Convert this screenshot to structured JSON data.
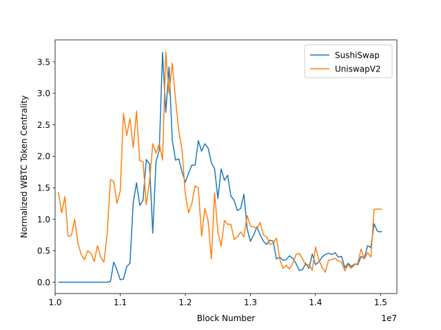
{
  "chart_data": {
    "type": "line",
    "xlabel": "Block Number",
    "ylabel": "Normalized WBTC Token Centrality",
    "x_scale_label": "1e7",
    "xlim": [
      10.0,
      15.25
    ],
    "ylim": [
      -0.18,
      3.85
    ],
    "x_ticks": [
      10.0,
      11.0,
      12.0,
      13.0,
      14.0,
      15.0
    ],
    "x_tick_labels": [
      "1.0",
      "1.1",
      "1.2",
      "1.3",
      "1.4",
      "1.5"
    ],
    "y_ticks": [
      0.0,
      0.5,
      1.0,
      1.5,
      2.0,
      2.5,
      3.0,
      3.5
    ],
    "y_tick_labels": [
      "0.0",
      "0.5",
      "1.0",
      "1.5",
      "2.0",
      "2.5",
      "3.0",
      "3.5"
    ],
    "grid": false,
    "legend_position": "top-right",
    "series": [
      {
        "name": "SushiSwap",
        "color": "#1f77b4",
        "x": [
          10.05,
          10.1,
          10.15,
          10.2,
          10.25,
          10.3,
          10.35,
          10.4,
          10.45,
          10.5,
          10.55,
          10.6,
          10.65,
          10.7,
          10.75,
          10.8,
          10.85,
          10.9,
          10.95,
          11.0,
          11.05,
          11.1,
          11.15,
          11.2,
          11.25,
          11.3,
          11.35,
          11.4,
          11.45,
          11.5,
          11.55,
          11.6,
          11.65,
          11.7,
          11.75,
          11.8,
          11.85,
          11.9,
          11.95,
          12.0,
          12.05,
          12.1,
          12.15,
          12.2,
          12.25,
          12.3,
          12.35,
          12.4,
          12.45,
          12.5,
          12.55,
          12.6,
          12.65,
          12.7,
          12.75,
          12.8,
          12.85,
          12.9,
          12.95,
          13.0,
          13.05,
          13.1,
          13.15,
          13.2,
          13.25,
          13.3,
          13.35,
          13.4,
          13.45,
          13.5,
          13.55,
          13.6,
          13.65,
          13.7,
          13.75,
          13.8,
          13.85,
          13.9,
          13.95,
          14.0,
          14.05,
          14.1,
          14.15,
          14.2,
          14.25,
          14.3,
          14.35,
          14.4,
          14.45,
          14.5,
          14.55,
          14.6,
          14.65,
          14.7,
          14.75,
          14.8,
          14.85,
          14.9,
          14.95,
          15.0,
          15.02
        ],
        "y": [
          0,
          0,
          0,
          0,
          0,
          0,
          0,
          0,
          0,
          0,
          0,
          0,
          0,
          0,
          0,
          0,
          0.01,
          0.32,
          0.2,
          0.04,
          0.05,
          0.25,
          0.3,
          1.27,
          1.58,
          1.22,
          1.3,
          1.95,
          1.88,
          0.78,
          1.92,
          2.1,
          3.65,
          2.7,
          3.42,
          2.25,
          1.94,
          1.96,
          1.75,
          1.59,
          1.73,
          1.86,
          1.86,
          2.25,
          2.08,
          2.2,
          2.13,
          1.9,
          1.8,
          1.33,
          1.8,
          1.62,
          1.7,
          1.37,
          1.3,
          1.14,
          1.17,
          1.4,
          0.85,
          0.65,
          0.75,
          0.88,
          0.75,
          0.65,
          0.6,
          0.67,
          0.65,
          0.37,
          0.4,
          0.35,
          0.36,
          0.42,
          0.38,
          0.3,
          0.19,
          0.2,
          0.3,
          0.22,
          0.45,
          0.28,
          0.32,
          0.4,
          0.44,
          0.46,
          0.44,
          0.47,
          0.4,
          0.41,
          0.23,
          0.3,
          0.25,
          0.29,
          0.28,
          0.41,
          0.38,
          0.58,
          0.55,
          0.93,
          0.81,
          0.8,
          0.81
        ]
      },
      {
        "name": "UniswapV2",
        "color": "#ff7f0e",
        "x": [
          10.05,
          10.1,
          10.15,
          10.2,
          10.25,
          10.3,
          10.35,
          10.4,
          10.45,
          10.5,
          10.55,
          10.6,
          10.65,
          10.7,
          10.75,
          10.8,
          10.85,
          10.9,
          10.95,
          11.0,
          11.05,
          11.1,
          11.15,
          11.2,
          11.25,
          11.3,
          11.35,
          11.4,
          11.45,
          11.5,
          11.55,
          11.6,
          11.65,
          11.7,
          11.75,
          11.8,
          11.85,
          11.9,
          11.95,
          12.0,
          12.05,
          12.1,
          12.15,
          12.2,
          12.25,
          12.3,
          12.35,
          12.4,
          12.45,
          12.5,
          12.55,
          12.6,
          12.65,
          12.7,
          12.75,
          12.8,
          12.85,
          12.9,
          12.95,
          13.0,
          13.05,
          13.1,
          13.15,
          13.2,
          13.25,
          13.3,
          13.35,
          13.4,
          13.45,
          13.5,
          13.55,
          13.6,
          13.65,
          13.7,
          13.75,
          13.8,
          13.85,
          13.9,
          13.95,
          14.0,
          14.05,
          14.1,
          14.15,
          14.2,
          14.25,
          14.3,
          14.35,
          14.4,
          14.45,
          14.5,
          14.55,
          14.6,
          14.65,
          14.7,
          14.75,
          14.8,
          14.85,
          14.9,
          14.95,
          15.0,
          15.02
        ],
        "y": [
          1.43,
          1.1,
          1.36,
          0.73,
          0.74,
          1.0,
          0.62,
          0.44,
          0.36,
          0.5,
          0.46,
          0.33,
          0.58,
          0.4,
          0.32,
          0.78,
          1.63,
          1.6,
          1.25,
          1.45,
          2.68,
          2.33,
          2.6,
          2.14,
          2.72,
          1.93,
          1.92,
          1.23,
          1.6,
          2.2,
          2.05,
          2.21,
          1.94,
          3.66,
          3.0,
          3.48,
          2.9,
          2.4,
          2.1,
          1.4,
          1.1,
          1.25,
          1.53,
          1.5,
          0.73,
          1.17,
          0.98,
          0.37,
          1.42,
          0.8,
          0.57,
          0.98,
          0.92,
          0.92,
          0.68,
          0.72,
          0.8,
          0.72,
          1.06,
          0.89,
          0.88,
          0.85,
          0.95,
          0.75,
          0.72,
          0.6,
          0.62,
          0.7,
          0.37,
          0.22,
          0.27,
          0.21,
          0.3,
          0.44,
          0.46,
          0.37,
          0.27,
          0.28,
          0.19,
          0.56,
          0.36,
          0.24,
          0.16,
          0.35,
          0.36,
          0.38,
          0.34,
          0.32,
          0.18,
          0.28,
          0.22,
          0.28,
          0.3,
          0.53,
          0.37,
          0.47,
          0.4,
          1.16,
          1.16,
          1.16,
          1.16
        ]
      }
    ]
  }
}
